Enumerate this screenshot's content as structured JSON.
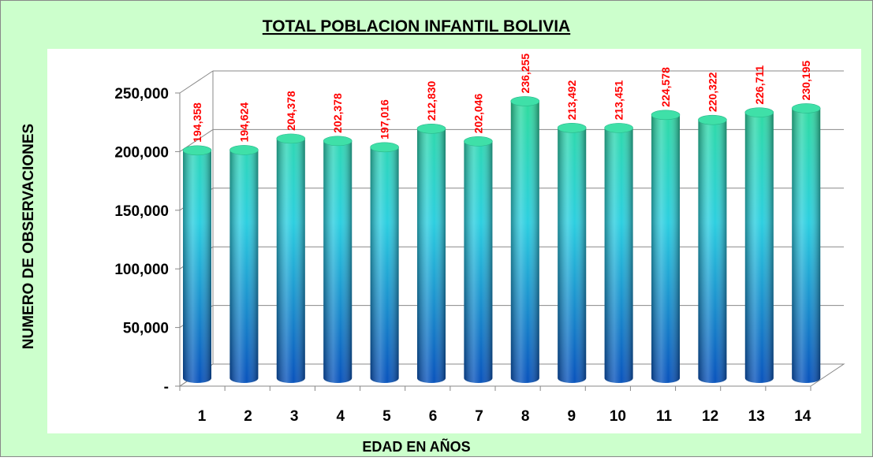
{
  "chart_data": {
    "type": "bar3d",
    "title": "TOTAL POBLACION INFANTIL BOLIVIA",
    "x_label": "EDAD EN AÑOS",
    "y_label": "NUMERO DE OBSERVACIONES",
    "categories": [
      "1",
      "2",
      "3",
      "4",
      "5",
      "6",
      "7",
      "8",
      "9",
      "10",
      "11",
      "12",
      "13",
      "14"
    ],
    "values": [
      194358,
      194624,
      204378,
      202378,
      197016,
      212830,
      202046,
      236255,
      213492,
      213451,
      224578,
      220322,
      226711,
      230195
    ],
    "value_labels": [
      "194,358",
      "194,624",
      "204,378",
      "202,378",
      "197,016",
      "212,830",
      "202,046",
      "236,255",
      "213,492",
      "213,451",
      "224,578",
      "220,322",
      "226,711",
      "230,195"
    ],
    "ylim": [
      0,
      250000
    ],
    "yticks": [
      {
        "value": 0,
        "label": "-"
      },
      {
        "value": 50000,
        "label": "50,000"
      },
      {
        "value": 100000,
        "label": "100,000"
      },
      {
        "value": 150000,
        "label": "150,000"
      },
      {
        "value": 200000,
        "label": "200,000"
      },
      {
        "value": 250000,
        "label": "250,000"
      }
    ],
    "grid": true,
    "label_color": "#ff0000"
  }
}
